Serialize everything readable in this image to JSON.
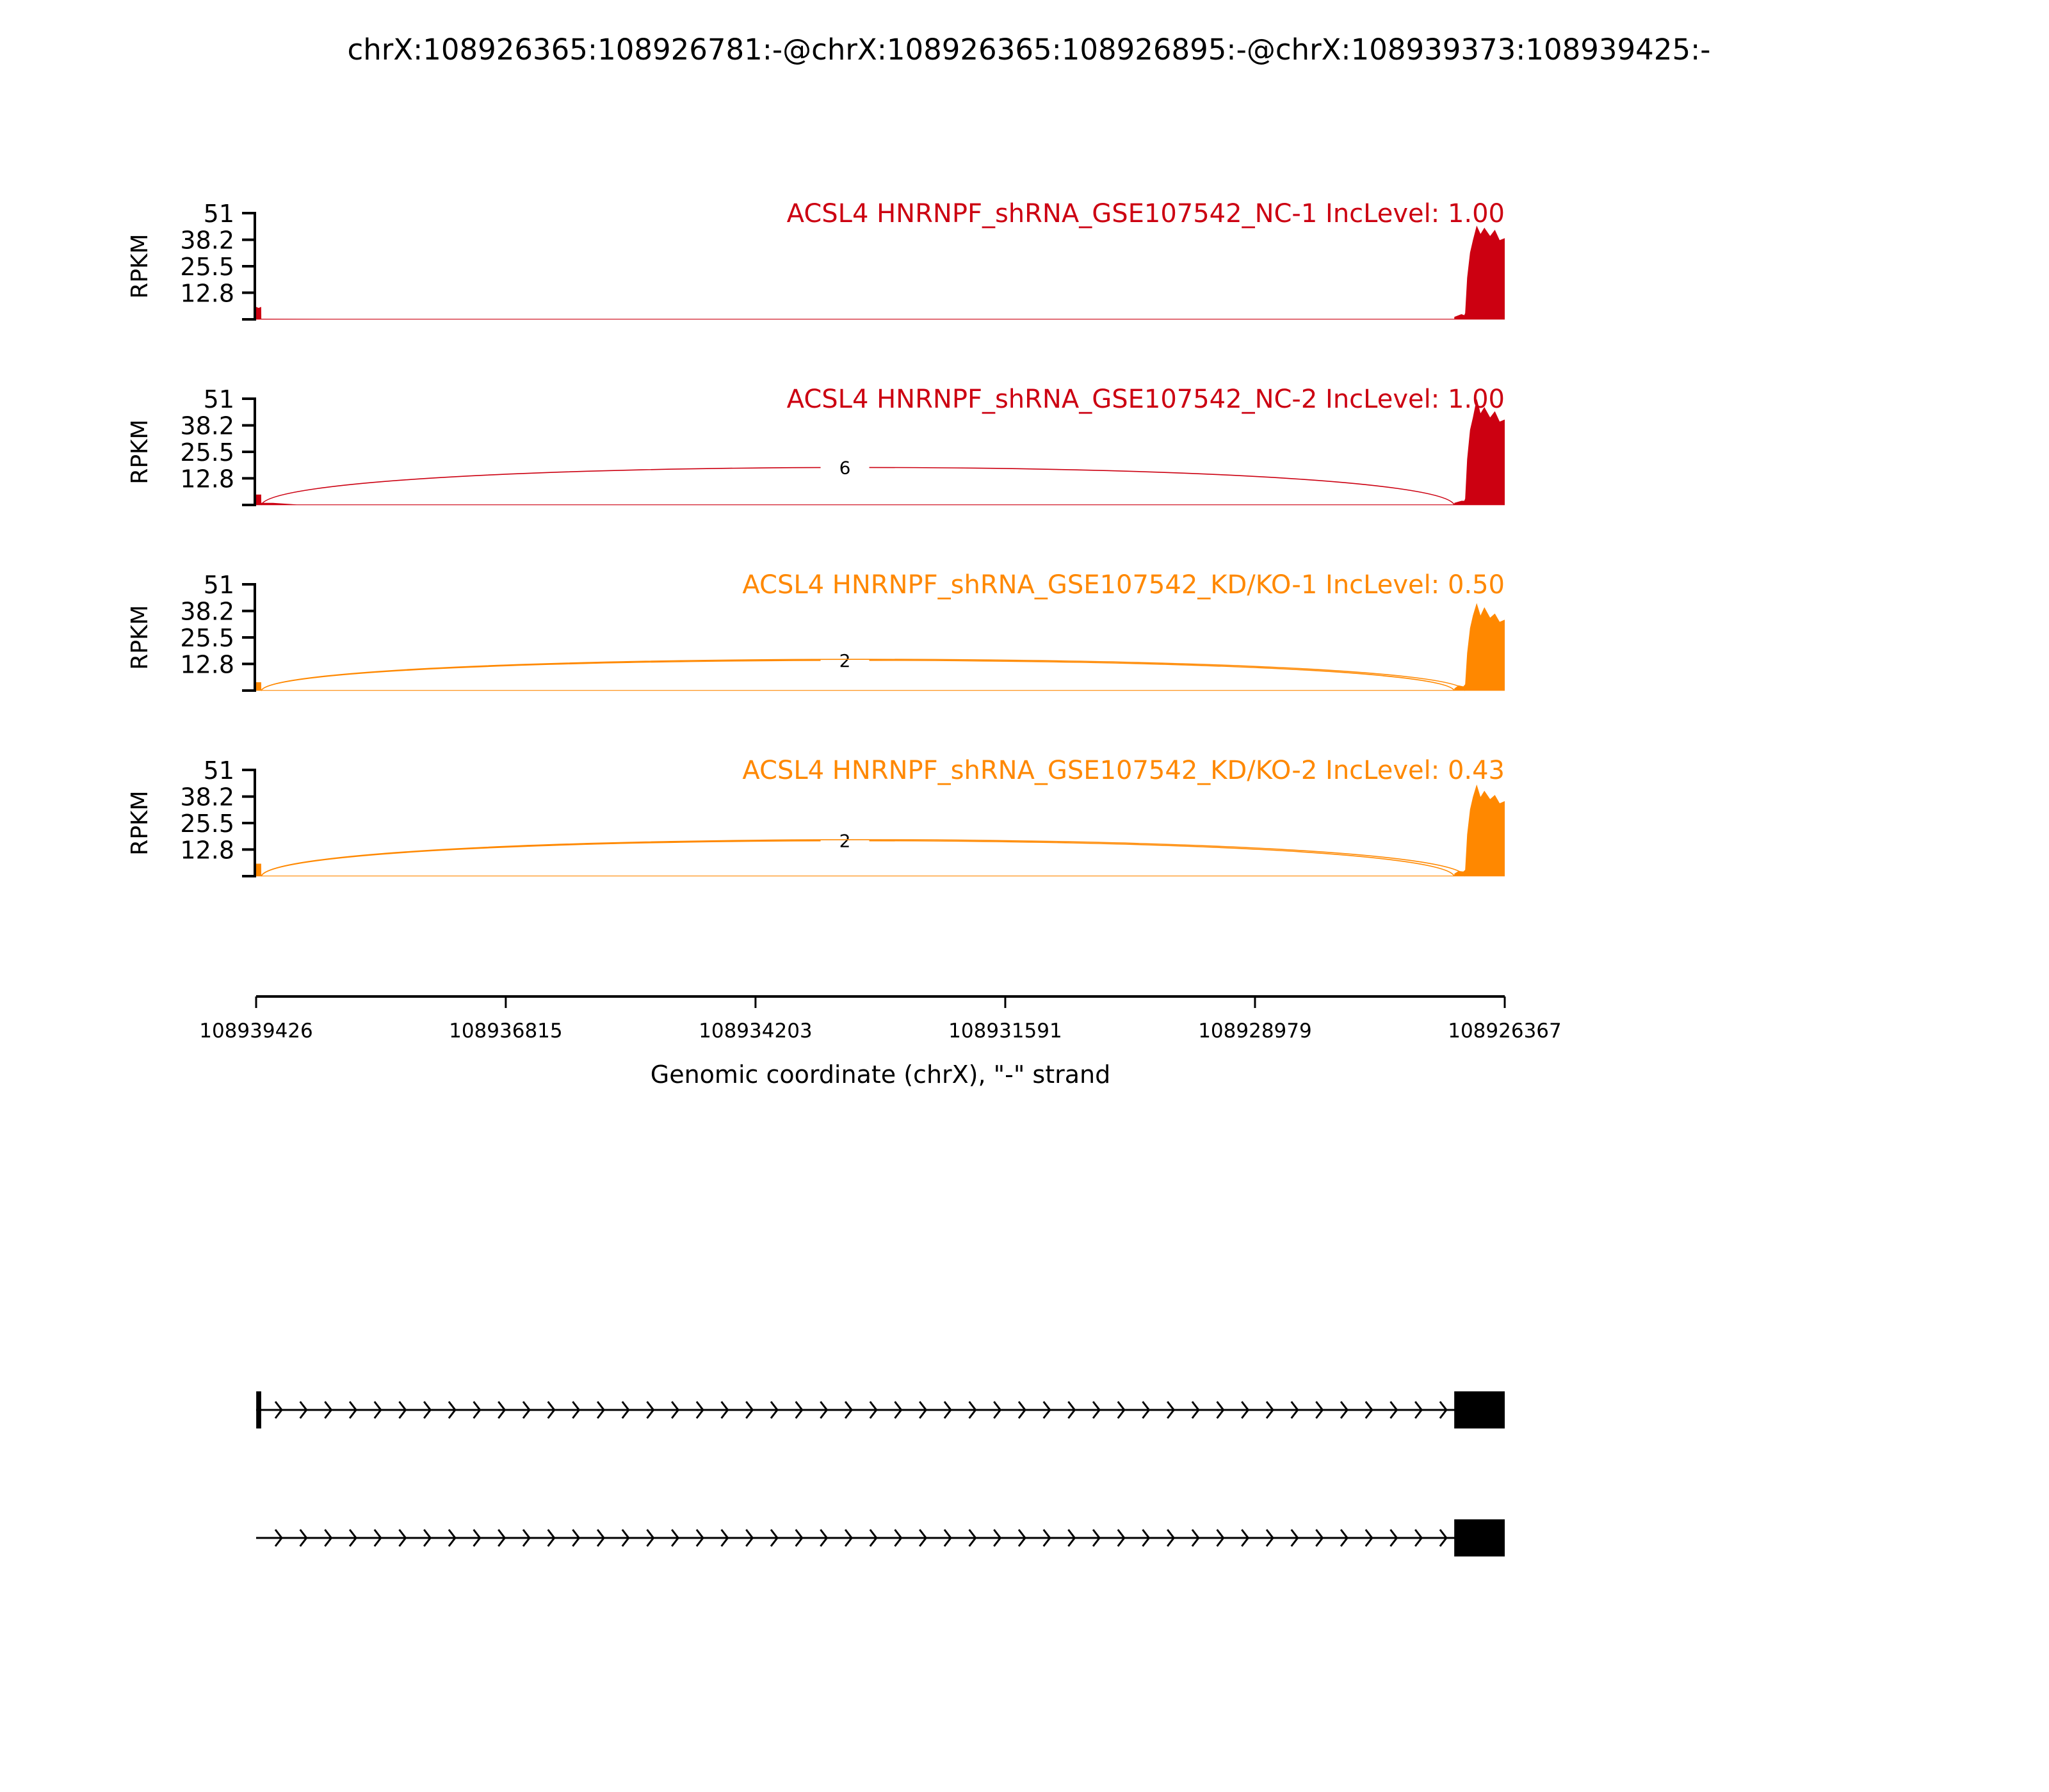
{
  "title": "chrX:108926365:108926781:-@chrX:108926365:108926895:-@chrX:108939373:108939425:-",
  "chart_data": {
    "type": "area",
    "title": "chrX:108926365:108926781:-@chrX:108926365:108926895:-@chrX:108939373:108939425:-",
    "xlabel": "Genomic coordinate (chrX), \"-\" strand",
    "xlim": [
      108939426,
      108926367
    ],
    "x_reversed": true,
    "xticks": [
      "108939426",
      "108936815",
      "108934203",
      "108931591",
      "108928979",
      "108926367"
    ],
    "ylabel": "RPKM",
    "ylim": [
      0,
      51
    ],
    "yticks": [
      "12.8",
      "25.5",
      "38.2",
      "51"
    ],
    "grid": false,
    "panels": [
      {
        "title": "ACSL4 HNRNPF_shRNA_GSE107542_NC-1 IncLevel: 1.00",
        "color": "#cc0011",
        "coverage": [
          [
            108939426,
            6
          ],
          [
            108939400,
            5.5
          ],
          [
            108939373,
            6
          ],
          [
            108939372,
            0.3
          ],
          [
            108938500,
            0.2
          ],
          [
            108926895,
            0.2
          ],
          [
            108926894,
            1.2
          ],
          [
            108926820,
            2.5
          ],
          [
            108926790,
            2
          ],
          [
            108926781,
            3
          ],
          [
            108926760,
            20
          ],
          [
            108926730,
            32
          ],
          [
            108926700,
            38
          ],
          [
            108926660,
            45
          ],
          [
            108926620,
            41
          ],
          [
            108926580,
            44
          ],
          [
            108926520,
            40
          ],
          [
            108926470,
            43
          ],
          [
            108926420,
            38
          ],
          [
            108926367,
            39
          ]
        ],
        "junctions": []
      },
      {
        "title": "ACSL4 HNRNPF_shRNA_GSE107542_NC-2 IncLevel: 1.00",
        "color": "#cc0011",
        "coverage": [
          [
            108939426,
            5
          ],
          [
            108939373,
            5
          ],
          [
            108939372,
            1
          ],
          [
            108939250,
            1
          ],
          [
            108939000,
            0.2
          ],
          [
            108926895,
            0.2
          ],
          [
            108926894,
            1
          ],
          [
            108926820,
            2
          ],
          [
            108926790,
            2
          ],
          [
            108926781,
            3
          ],
          [
            108926760,
            22
          ],
          [
            108926730,
            36
          ],
          [
            108926700,
            42
          ],
          [
            108926660,
            51
          ],
          [
            108926620,
            44
          ],
          [
            108926580,
            47
          ],
          [
            108926520,
            42
          ],
          [
            108926470,
            45
          ],
          [
            108926420,
            40
          ],
          [
            108926367,
            41
          ]
        ],
        "junctions": [
          {
            "start": 108939373,
            "end": 108926895,
            "count": "6",
            "height": 18
          }
        ]
      },
      {
        "title": "ACSL4 HNRNPF_shRNA_GSE107542_KD/KO-1 IncLevel: 0.50",
        "color": "#ff8800",
        "coverage": [
          [
            108939426,
            4
          ],
          [
            108939373,
            4
          ],
          [
            108939372,
            0.2
          ],
          [
            108926895,
            0.2
          ],
          [
            108926894,
            1
          ],
          [
            108926850,
            2.5
          ],
          [
            108926800,
            2
          ],
          [
            108926781,
            3
          ],
          [
            108926760,
            18
          ],
          [
            108926730,
            30
          ],
          [
            108926700,
            36
          ],
          [
            108926660,
            42
          ],
          [
            108926620,
            36
          ],
          [
            108926580,
            40
          ],
          [
            108926520,
            35
          ],
          [
            108926470,
            37
          ],
          [
            108926420,
            33
          ],
          [
            108926367,
            34
          ]
        ],
        "junctions": [
          {
            "start": 108939373,
            "end": 108926895,
            "count": "2",
            "height": 14.5
          },
          {
            "start": 108939373,
            "end": 108926781,
            "height": 15
          }
        ]
      },
      {
        "title": "ACSL4 HNRNPF_shRNA_GSE107542_KD/KO-2 IncLevel: 0.43",
        "color": "#ff8800",
        "coverage": [
          [
            108939426,
            6
          ],
          [
            108939373,
            6
          ],
          [
            108939372,
            0.2
          ],
          [
            108926895,
            0.2
          ],
          [
            108926894,
            1.2
          ],
          [
            108926850,
            2.5
          ],
          [
            108926800,
            2.2
          ],
          [
            108926781,
            3
          ],
          [
            108926760,
            20
          ],
          [
            108926730,
            32
          ],
          [
            108926700,
            38
          ],
          [
            108926660,
            44
          ],
          [
            108926620,
            38
          ],
          [
            108926580,
            41
          ],
          [
            108926520,
            37
          ],
          [
            108926470,
            39
          ],
          [
            108926420,
            35
          ],
          [
            108926367,
            36
          ]
        ],
        "junctions": [
          {
            "start": 108939373,
            "end": 108926895,
            "count": "2",
            "height": 17
          },
          {
            "start": 108939373,
            "end": 108926781,
            "height": 17.5
          }
        ]
      }
    ],
    "isoforms": [
      {
        "exons": [
          [
            108939425,
            108939373
          ],
          [
            108926895,
            108926365
          ]
        ],
        "strand": "-"
      },
      {
        "exons": [
          [
            108926895,
            108926365
          ]
        ],
        "strand": "-"
      }
    ]
  }
}
